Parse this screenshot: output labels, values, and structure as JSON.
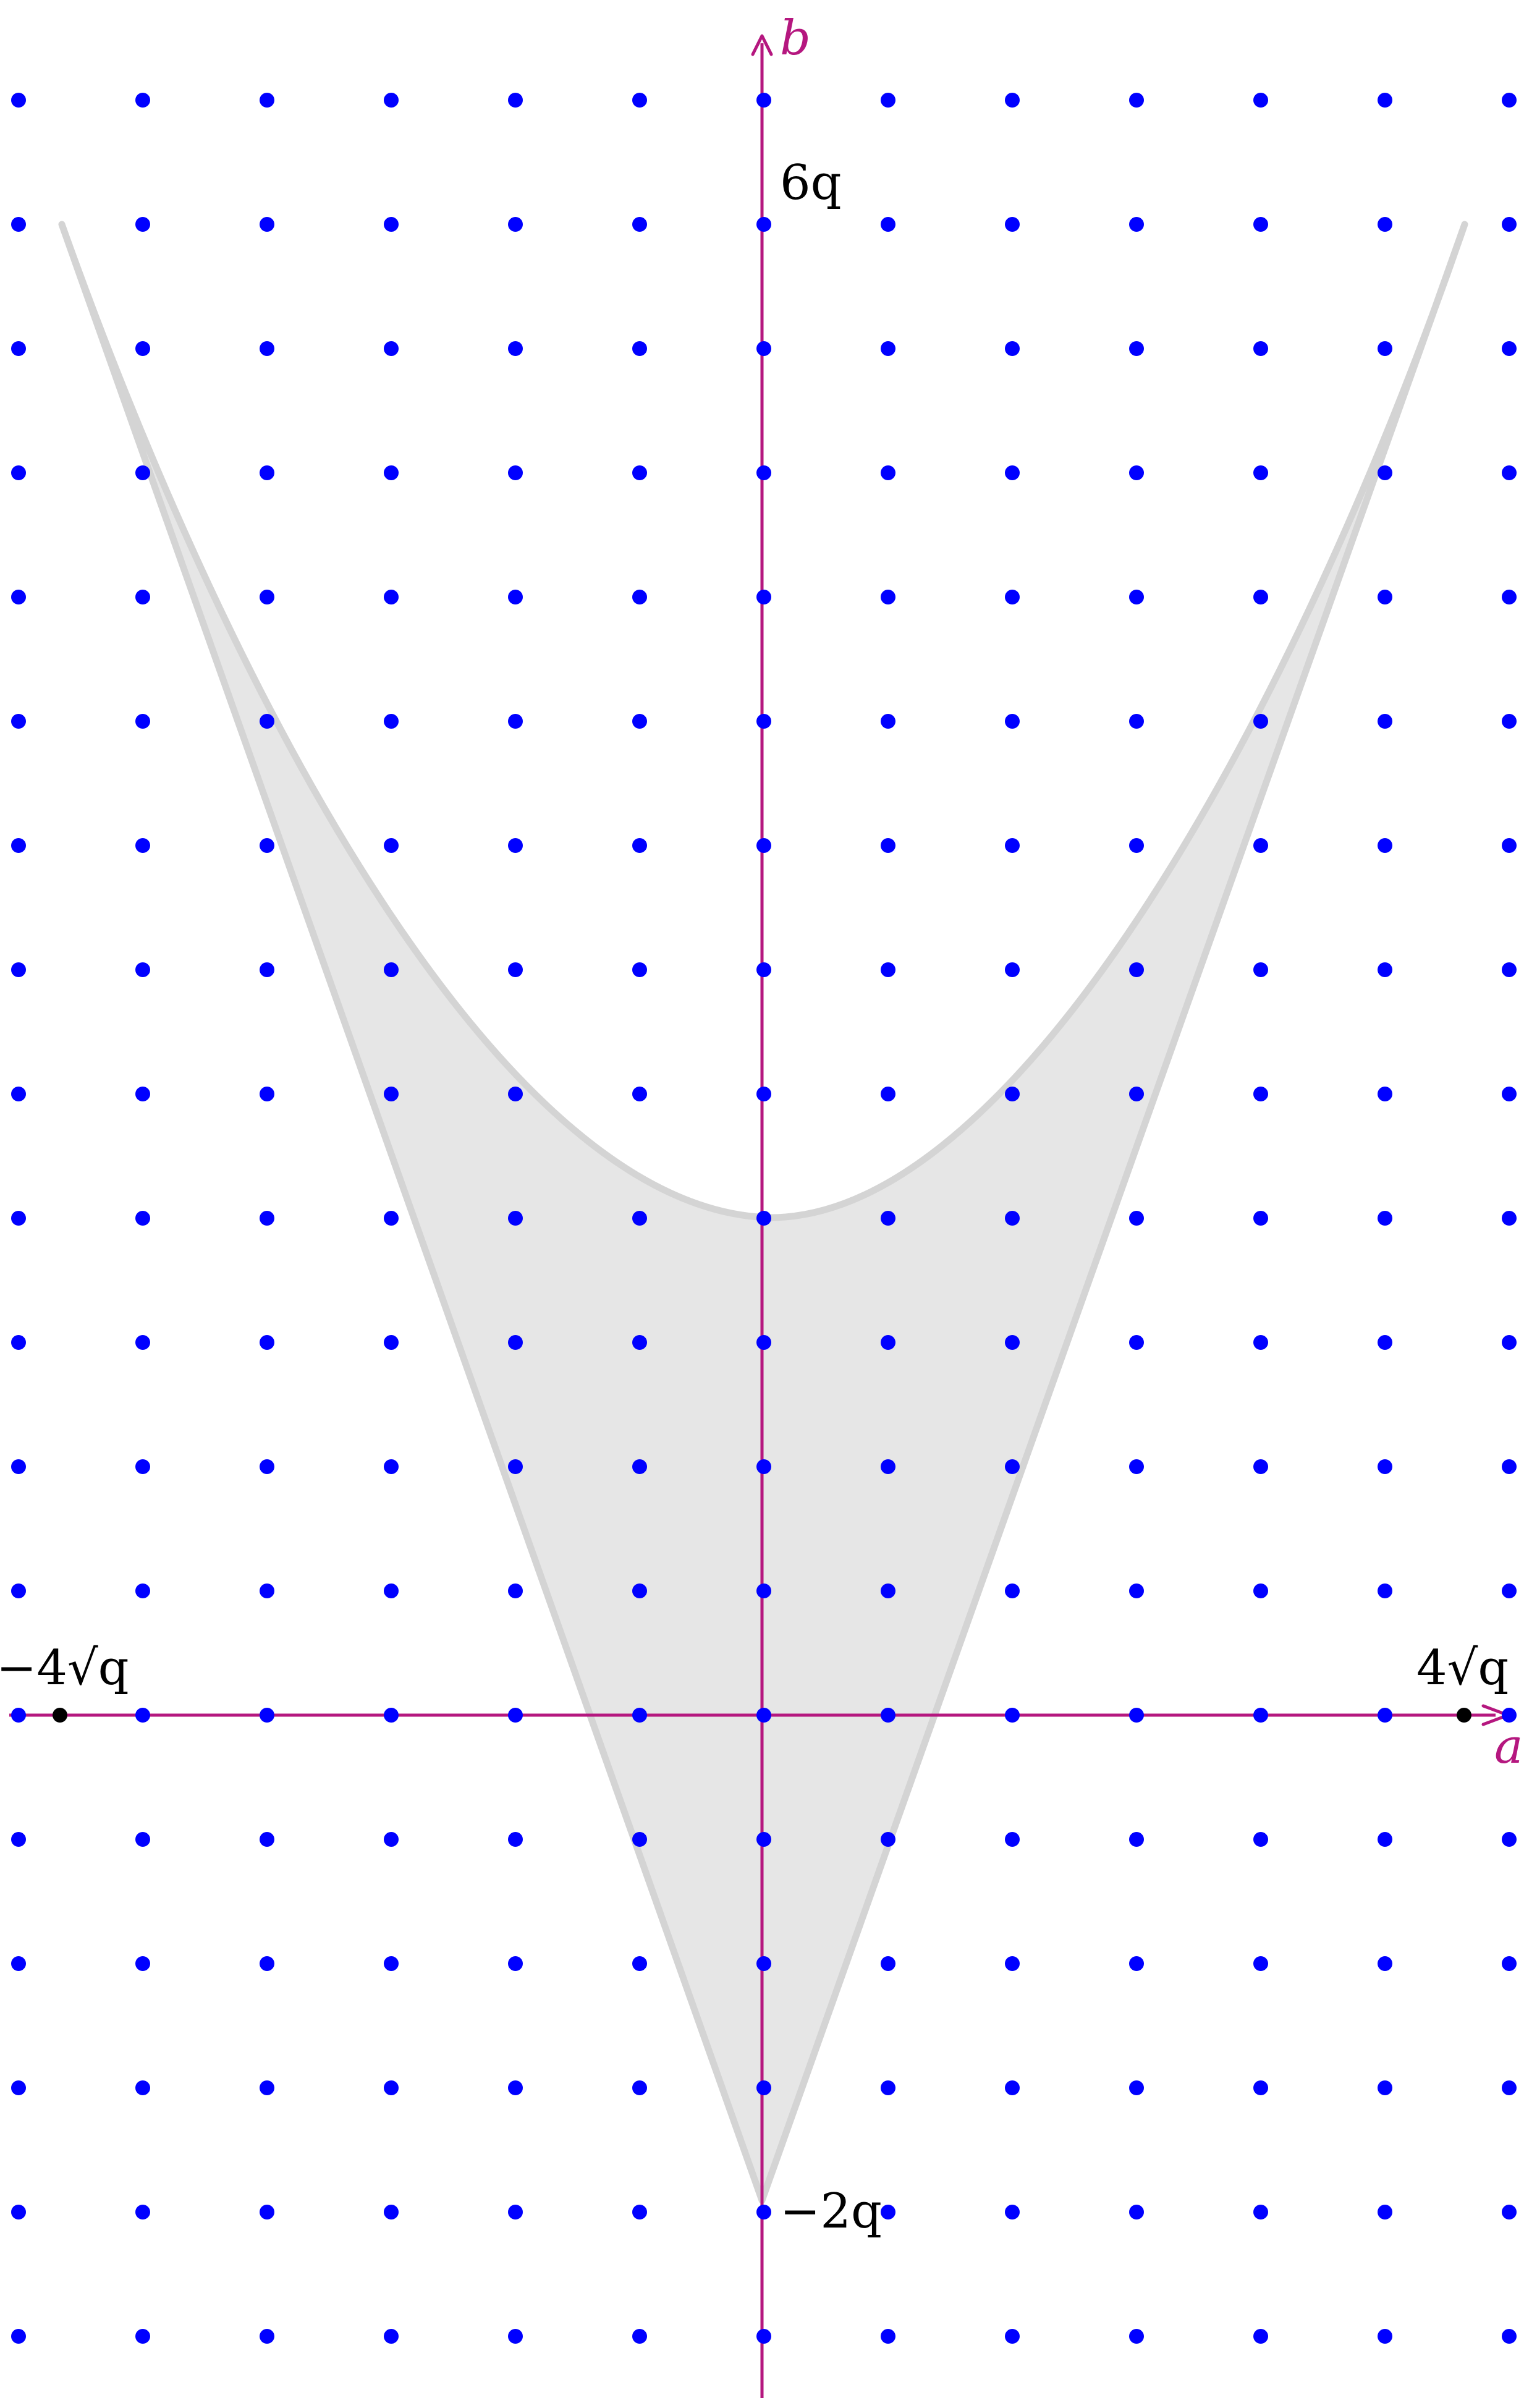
{
  "diagram": {
    "axes": {
      "x_label": "a",
      "y_label": "b",
      "axis_color": "#b5177f"
    },
    "labels": {
      "top": "6q",
      "bottom": "−2q",
      "left": "−4√q",
      "right": "4√q"
    },
    "colors": {
      "lattice_points": "#0000ff",
      "region_fill": "#e6e6e6",
      "region_stroke": "#d4d4d4",
      "marker_points": "#000000",
      "label_text": "#000000"
    },
    "lattice": {
      "columns": 13,
      "rows": 19
    }
  }
}
